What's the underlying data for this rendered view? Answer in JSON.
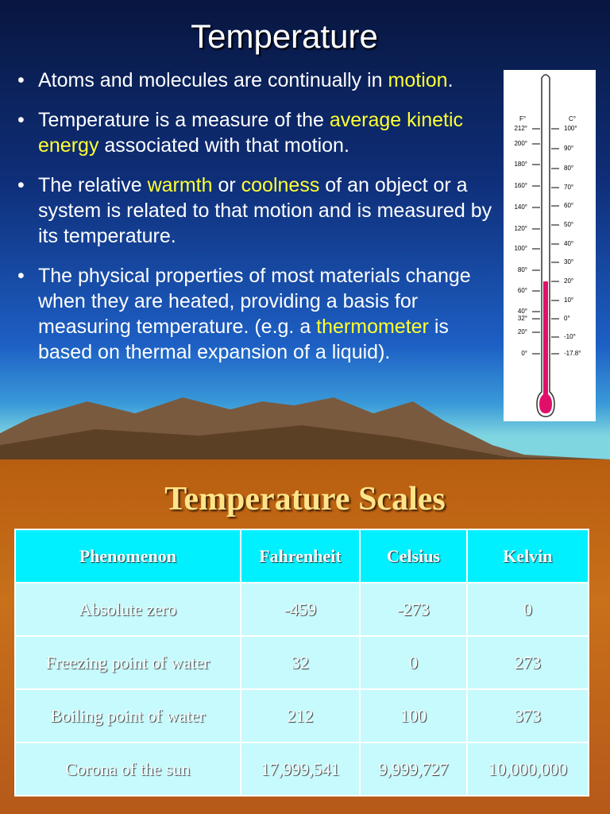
{
  "slide1": {
    "title": "Temperature",
    "bullets": [
      [
        {
          "text": "Atoms and molecules are continually in ",
          "color": "#ffffff"
        },
        {
          "text": "motion",
          "color": "#ffff33"
        },
        {
          "text": ".",
          "color": "#ffffff"
        }
      ],
      [
        {
          "text": "Temperature is a measure of the ",
          "color": "#ffffff"
        },
        {
          "text": "average kinetic energy",
          "color": "#ffff33"
        },
        {
          "text": " associated with that motion.",
          "color": "#ffffff"
        }
      ],
      [
        {
          "text": "The relative ",
          "color": "#ffffff"
        },
        {
          "text": "warmth",
          "color": "#ffff33"
        },
        {
          "text": " or ",
          "color": "#ffffff"
        },
        {
          "text": "coolness",
          "color": "#ffff33"
        },
        {
          "text": " of an object or a system is related to that motion and is measured by its temperature.",
          "color": "#ffffff"
        }
      ],
      [
        {
          "text": "The physical properties of most materials change when they are heated, providing a basis for measuring temperature. (e.g. a ",
          "color": "#ffffff"
        },
        {
          "text": "thermometer",
          "color": "#ffff33"
        },
        {
          "text": " is based on thermal expansion of a liquid).",
          "color": "#ffffff"
        }
      ]
    ],
    "thermometer": {
      "f_header": "F°",
      "c_header": "C°",
      "fahrenheit": [
        "212°",
        "200°",
        "180°",
        "160°",
        "140°",
        "120°",
        "100°",
        "80°",
        "60°",
        "40°",
        "32°",
        "20°",
        "0°"
      ],
      "celsius": [
        "100°",
        "90°",
        "80°",
        "70°",
        "60°",
        "50°",
        "40°",
        "30°",
        "20°",
        "10°",
        "0°",
        "-10°",
        "-17.8°"
      ]
    }
  },
  "slide2": {
    "title": "Temperature Scales",
    "table": {
      "header": [
        "Phenomenon",
        "Fahrenheit",
        "Celsius",
        "Kelvin"
      ],
      "rows": [
        [
          "Absolute zero",
          "-459",
          "-273",
          "0"
        ],
        [
          "Freezing point of water",
          "32",
          "0",
          "273"
        ],
        [
          "Boiling point of water",
          "212",
          "100",
          "373"
        ],
        [
          "Corona of the sun",
          "17,999,541",
          "9,999,727",
          "10,000,000"
        ]
      ]
    }
  }
}
